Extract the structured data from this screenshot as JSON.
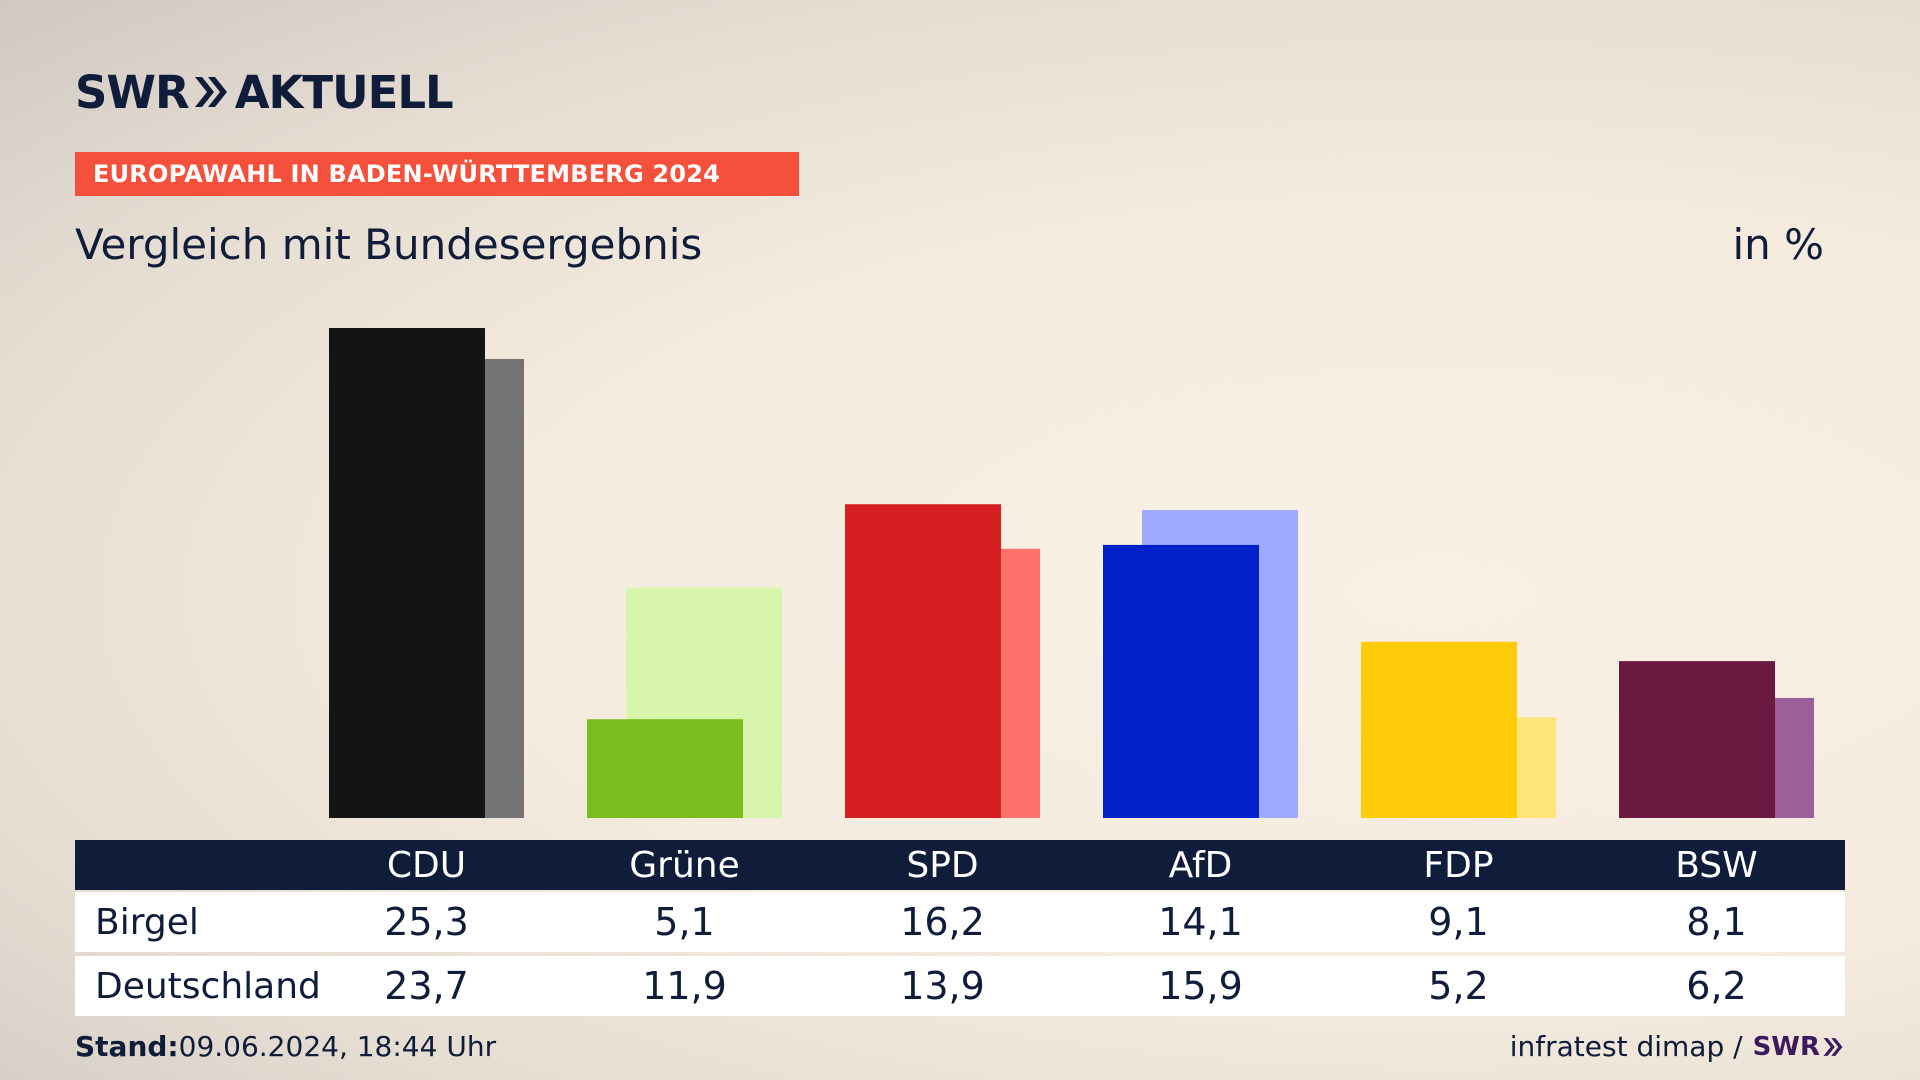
{
  "header": {
    "logo_left": "SWR",
    "logo_right": "AKTUELL",
    "topic": "EUROPAWAHL IN BADEN-WÜRTTEMBERG 2024"
  },
  "chart_title": "Vergleich mit Bundesergebnis",
  "unit": "in %",
  "table": {
    "row_labels": [
      "Birgel",
      "Deutschland"
    ]
  },
  "footer": {
    "stand_label": "Stand:",
    "stand_value": "09.06.2024, 18:44 Uhr",
    "source": "infratest dimap /",
    "source_brand": "SWR"
  },
  "chart_data": {
    "type": "bar",
    "title": "Vergleich mit Bundesergebnis",
    "ylabel": "in %",
    "ylim": [
      0,
      25.3
    ],
    "categories": [
      "CDU",
      "Grüne",
      "SPD",
      "AfD",
      "FDP",
      "BSW"
    ],
    "series": [
      {
        "name": "Birgel",
        "values": [
          25.3,
          5.1,
          16.2,
          14.1,
          9.1,
          8.1
        ],
        "display": [
          "25,3",
          "5,1",
          "16,2",
          "14,1",
          "9,1",
          "8,1"
        ]
      },
      {
        "name": "Deutschland",
        "values": [
          23.7,
          11.9,
          13.9,
          15.9,
          5.2,
          6.2
        ],
        "display": [
          "23,7",
          "11,9",
          "13,9",
          "15,9",
          "5,2",
          "6,2"
        ]
      }
    ],
    "colors": {
      "primary": [
        "#141414",
        "#79bd1e",
        "#d61f20",
        "#0020c9",
        "#ffcc09",
        "#6b1940"
      ],
      "secondary": [
        "#737373",
        "#d7f5ab",
        "#ff726b",
        "#9dabff",
        "#ffe47a",
        "#9b5f9a"
      ]
    },
    "grid": false,
    "legend": "table-below"
  }
}
